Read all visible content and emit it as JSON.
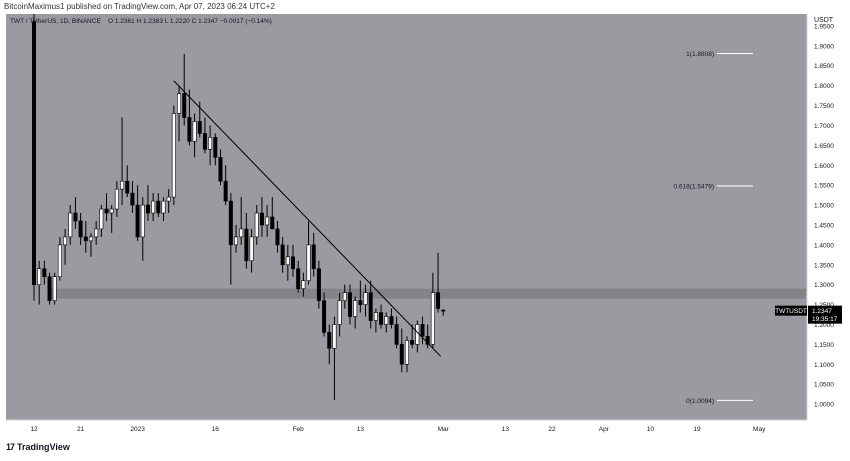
{
  "header": {
    "published": "BitcoinMaximus1 published on TradingView.com, Apr 07, 2023 06:24 UTC+2",
    "symbol_line": "TWT / TetherUS, 1D, BINANCE",
    "ohlc": "O 1.2361  H 1.2383  L 1.2220  C 1.2347  −0.0017 (−0.14%)"
  },
  "footer": {
    "brand": "TradingView"
  },
  "colors": {
    "plot_bg": "#9a9ba0",
    "bull": "#ffffff",
    "bear": "#000000",
    "trendline": "#000000",
    "support_zone": "#7f8084",
    "fib_line": "#ffffff",
    "price_tag_bg": "#000000"
  },
  "chart_data": {
    "type": "candlestick",
    "title": "TWT / TetherUS, 1D, BINANCE",
    "ylabel": "USDT",
    "ylim": [
      0.96,
      1.98
    ],
    "y_ticks": [
      "1.0000",
      "1.0500",
      "1.1000",
      "1.1500",
      "1.2000",
      "1.2500",
      "1.3000",
      "1.3500",
      "1.4000",
      "1.4500",
      "1.5000",
      "1.5500",
      "1.6000",
      "1.6500",
      "1.7000",
      "1.7500",
      "1.8000",
      "1.8500",
      "1.9000",
      "1.9500"
    ],
    "x_ticks": [
      {
        "label": "12",
        "day": 0
      },
      {
        "label": "21",
        "day": 9
      },
      {
        "label": "2023",
        "day": 20
      },
      {
        "label": "16",
        "day": 35
      },
      {
        "label": "Feb",
        "day": 51
      },
      {
        "label": "13",
        "day": 63
      },
      {
        "label": "Mar",
        "day": 79
      },
      {
        "label": "13",
        "day": 91
      },
      {
        "label": "22",
        "day": 100
      },
      {
        "label": "Apr",
        "day": 110
      },
      {
        "label": "10",
        "day": 119
      },
      {
        "label": "19",
        "day": 128
      },
      {
        "label": "May",
        "day": 140
      }
    ],
    "candles": [
      [
        1.96,
        1.98,
        1.26,
        1.3
      ],
      [
        1.3,
        1.36,
        1.25,
        1.34
      ],
      [
        1.34,
        1.36,
        1.3,
        1.32
      ],
      [
        1.32,
        1.33,
        1.25,
        1.26
      ],
      [
        1.26,
        1.33,
        1.25,
        1.32
      ],
      [
        1.32,
        1.42,
        1.31,
        1.4
      ],
      [
        1.4,
        1.44,
        1.35,
        1.42
      ],
      [
        1.42,
        1.5,
        1.4,
        1.48
      ],
      [
        1.48,
        1.52,
        1.44,
        1.46
      ],
      [
        1.46,
        1.48,
        1.4,
        1.42
      ],
      [
        1.42,
        1.46,
        1.38,
        1.41
      ],
      [
        1.41,
        1.43,
        1.37,
        1.42
      ],
      [
        1.42,
        1.46,
        1.4,
        1.44
      ],
      [
        1.44,
        1.5,
        1.42,
        1.49
      ],
      [
        1.49,
        1.53,
        1.46,
        1.48
      ],
      [
        1.48,
        1.5,
        1.43,
        1.49
      ],
      [
        1.49,
        1.56,
        1.47,
        1.54
      ],
      [
        1.54,
        1.72,
        1.5,
        1.56
      ],
      [
        1.56,
        1.6,
        1.52,
        1.53
      ],
      [
        1.53,
        1.56,
        1.48,
        1.5
      ],
      [
        1.5,
        1.55,
        1.41,
        1.42
      ],
      [
        1.42,
        1.52,
        1.36,
        1.5
      ],
      [
        1.5,
        1.55,
        1.46,
        1.48
      ],
      [
        1.48,
        1.53,
        1.46,
        1.51
      ],
      [
        1.51,
        1.53,
        1.47,
        1.48
      ],
      [
        1.48,
        1.52,
        1.46,
        1.51
      ],
      [
        1.51,
        1.54,
        1.48,
        1.52
      ],
      [
        1.52,
        1.75,
        1.5,
        1.73
      ],
      [
        1.73,
        1.8,
        1.66,
        1.78
      ],
      [
        1.78,
        1.88,
        1.7,
        1.72
      ],
      [
        1.72,
        1.79,
        1.65,
        1.66
      ],
      [
        1.66,
        1.73,
        1.62,
        1.71
      ],
      [
        1.71,
        1.76,
        1.67,
        1.68
      ],
      [
        1.68,
        1.72,
        1.63,
        1.64
      ],
      [
        1.64,
        1.7,
        1.6,
        1.67
      ],
      [
        1.67,
        1.68,
        1.6,
        1.62
      ],
      [
        1.62,
        1.64,
        1.55,
        1.56
      ],
      [
        1.56,
        1.6,
        1.5,
        1.51
      ],
      [
        1.51,
        1.53,
        1.3,
        1.4
      ],
      [
        1.4,
        1.45,
        1.38,
        1.42
      ],
      [
        1.42,
        1.52,
        1.4,
        1.44
      ],
      [
        1.44,
        1.48,
        1.34,
        1.36
      ],
      [
        1.36,
        1.44,
        1.33,
        1.42
      ],
      [
        1.42,
        1.5,
        1.4,
        1.48
      ],
      [
        1.48,
        1.52,
        1.42,
        1.45
      ],
      [
        1.45,
        1.5,
        1.42,
        1.47
      ],
      [
        1.47,
        1.52,
        1.44,
        1.44
      ],
      [
        1.44,
        1.46,
        1.38,
        1.4
      ],
      [
        1.4,
        1.42,
        1.33,
        1.35
      ],
      [
        1.35,
        1.4,
        1.31,
        1.37
      ],
      [
        1.37,
        1.4,
        1.32,
        1.34
      ],
      [
        1.34,
        1.36,
        1.28,
        1.29
      ],
      [
        1.29,
        1.33,
        1.27,
        1.31
      ],
      [
        1.31,
        1.46,
        1.3,
        1.4
      ],
      [
        1.4,
        1.43,
        1.32,
        1.34
      ],
      [
        1.34,
        1.36,
        1.24,
        1.26
      ],
      [
        1.26,
        1.28,
        1.17,
        1.18
      ],
      [
        1.18,
        1.2,
        1.1,
        1.14
      ],
      [
        1.14,
        1.22,
        1.01,
        1.2
      ],
      [
        1.2,
        1.28,
        1.17,
        1.26
      ],
      [
        1.26,
        1.3,
        1.24,
        1.28
      ],
      [
        1.28,
        1.3,
        1.2,
        1.22
      ],
      [
        1.22,
        1.27,
        1.19,
        1.26
      ],
      [
        1.26,
        1.31,
        1.23,
        1.25
      ],
      [
        1.25,
        1.3,
        1.22,
        1.28
      ],
      [
        1.28,
        1.31,
        1.19,
        1.21
      ],
      [
        1.21,
        1.24,
        1.18,
        1.23
      ],
      [
        1.23,
        1.25,
        1.19,
        1.2
      ],
      [
        1.2,
        1.23,
        1.18,
        1.22
      ],
      [
        1.22,
        1.24,
        1.19,
        1.2
      ],
      [
        1.2,
        1.22,
        1.14,
        1.15
      ],
      [
        1.15,
        1.19,
        1.08,
        1.1
      ],
      [
        1.1,
        1.17,
        1.08,
        1.16
      ],
      [
        1.16,
        1.2,
        1.14,
        1.15
      ],
      [
        1.15,
        1.21,
        1.13,
        1.2
      ],
      [
        1.2,
        1.22,
        1.15,
        1.17
      ],
      [
        1.17,
        1.2,
        1.14,
        1.15
      ],
      [
        1.15,
        1.33,
        1.14,
        1.28
      ],
      [
        1.28,
        1.38,
        1.23,
        1.24
      ],
      [
        1.2361,
        1.2383,
        1.222,
        1.2347
      ]
    ],
    "support_zone": [
      1.265,
      1.29
    ],
    "trendline": [
      {
        "x": 27,
        "y": 1.812
      },
      {
        "x": 78.5,
        "y": 1.12
      }
    ],
    "fib_levels": [
      {
        "label": "1(1.8808)",
        "value": 1.8808
      },
      {
        "label": "0.618(1.5479)",
        "value": 1.5479
      },
      {
        "label": "0(1.0094)",
        "value": 1.0094
      }
    ],
    "last_price": {
      "symbol": "TWTUSDT",
      "price": "1.2347",
      "countdown": "19:35:17",
      "value": 1.2347
    }
  }
}
